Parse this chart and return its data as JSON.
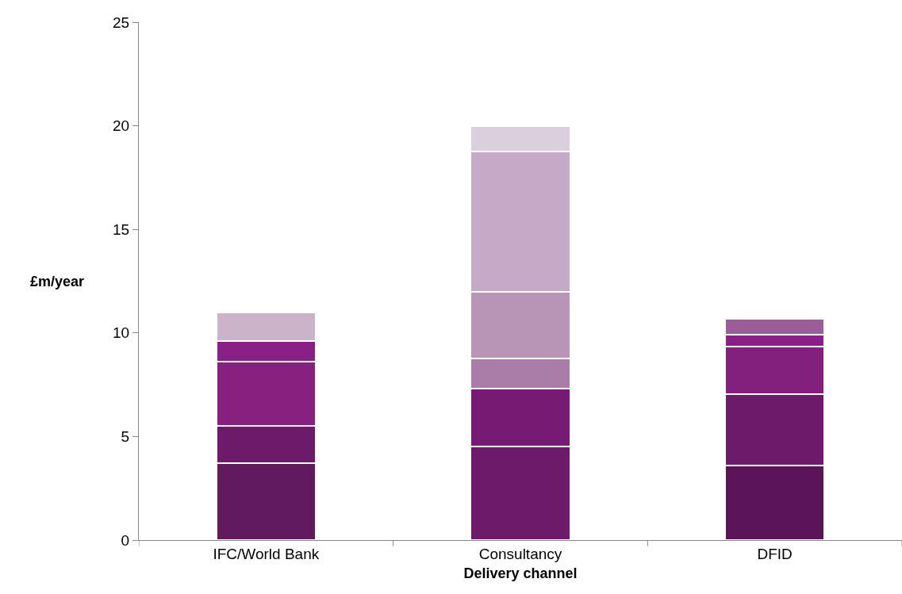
{
  "chart_data": {
    "type": "bar",
    "stacked": true,
    "xlabel": "Delivery channel",
    "ylabel": "£m/year",
    "categories": [
      "IFC/World Bank",
      "Consultancy",
      "DFID"
    ],
    "series": [
      {
        "colors": [
          "#621a5f",
          "#6e1a6a",
          "#5a1457"
        ],
        "values": [
          3.7,
          4.5,
          3.6
        ]
      },
      {
        "colors": [
          "#6e1a6a",
          "#761a73",
          "#6e1a6a"
        ],
        "values": [
          1.8,
          2.8,
          3.45
        ]
      },
      {
        "colors": [
          "#87207f",
          "#aa7ca8",
          "#831f7d"
        ],
        "values": [
          3.1,
          1.45,
          2.3
        ]
      },
      {
        "colors": [
          "#8a1f85",
          "#b894b7",
          "#8a1f85"
        ],
        "values": [
          1.0,
          3.25,
          0.55
        ]
      },
      {
        "colors": [
          "#cbb3ca",
          "#c6a9c6",
          "#9c5c9a"
        ],
        "values": [
          1.4,
          6.75,
          0.8
        ]
      },
      {
        "colors": [
          null,
          "#dccfdd",
          null
        ],
        "values": [
          null,
          1.25,
          null
        ]
      }
    ],
    "ylim": [
      0,
      25
    ],
    "yticks": [
      0,
      5,
      10,
      15,
      20,
      25
    ]
  }
}
